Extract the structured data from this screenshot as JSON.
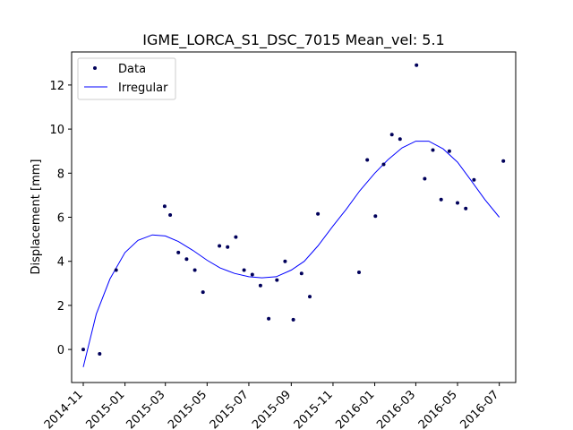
{
  "chart_data": {
    "type": "scatter",
    "title": "IGME_LORCA_S1_DSC_7015     Mean_vel: 5.1",
    "xlabel": "",
    "ylabel": "Displacement [mm]",
    "ylim": [
      -1.5,
      13.5
    ],
    "xlim": [
      "2014-10-15",
      "2016-07-25"
    ],
    "yticks": [
      0,
      2,
      4,
      6,
      8,
      10,
      12
    ],
    "xticks": [
      "2014-11",
      "2015-01",
      "2015-03",
      "2015-05",
      "2015-07",
      "2015-09",
      "2015-11",
      "2016-01",
      "2016-03",
      "2016-05",
      "2016-07"
    ],
    "grid": false,
    "legend": {
      "location": "upper-left",
      "entries": [
        "Data",
        "Irregular"
      ]
    },
    "colors": {
      "data": "#00005a",
      "fit": "#0000ff"
    },
    "series": [
      {
        "name": "Data",
        "kind": "points",
        "x": [
          "2014-11-01",
          "2014-11-25",
          "2014-12-19",
          "2015-02-28",
          "2015-03-08",
          "2015-03-20",
          "2015-04-01",
          "2015-04-13",
          "2015-04-25",
          "2015-05-19",
          "2015-05-31",
          "2015-06-12",
          "2015-06-24",
          "2015-07-06",
          "2015-07-18",
          "2015-07-30",
          "2015-08-11",
          "2015-08-23",
          "2015-09-04",
          "2015-09-16",
          "2015-09-28",
          "2015-10-10",
          "2015-12-09",
          "2015-12-21",
          "2016-01-02",
          "2016-01-14",
          "2016-01-26",
          "2016-02-07",
          "2016-03-02",
          "2016-03-14",
          "2016-03-26",
          "2016-04-07",
          "2016-04-19",
          "2016-05-01",
          "2016-05-13",
          "2016-05-25",
          "2016-07-07"
        ],
        "y": [
          0.0,
          -0.2,
          3.6,
          6.5,
          6.1,
          4.4,
          4.1,
          3.6,
          2.6,
          4.7,
          4.65,
          5.1,
          3.6,
          3.4,
          2.9,
          1.4,
          3.15,
          4.0,
          1.35,
          3.45,
          2.4,
          6.15,
          3.5,
          8.6,
          6.05,
          8.4,
          9.75,
          9.55,
          12.9,
          7.75,
          9.05,
          6.8,
          9.0,
          6.65,
          6.4,
          7.7,
          8.55
        ]
      },
      {
        "name": "Irregular",
        "kind": "line",
        "x": [
          "2014-11-01",
          "2014-11-20",
          "2014-12-10",
          "2015-01-01",
          "2015-01-20",
          "2015-02-10",
          "2015-03-01",
          "2015-03-20",
          "2015-04-10",
          "2015-05-01",
          "2015-05-20",
          "2015-06-10",
          "2015-07-01",
          "2015-07-20",
          "2015-08-10",
          "2015-09-01",
          "2015-09-20",
          "2015-10-10",
          "2015-11-01",
          "2015-11-20",
          "2015-12-10",
          "2016-01-01",
          "2016-01-20",
          "2016-02-10",
          "2016-03-01",
          "2016-03-20",
          "2016-04-10",
          "2016-05-01",
          "2016-05-20",
          "2016-06-10",
          "2016-07-01"
        ],
        "y": [
          -0.8,
          1.6,
          3.2,
          4.4,
          4.95,
          5.2,
          5.15,
          4.9,
          4.5,
          4.05,
          3.7,
          3.45,
          3.3,
          3.25,
          3.3,
          3.6,
          4.0,
          4.7,
          5.6,
          6.35,
          7.2,
          8.0,
          8.6,
          9.15,
          9.45,
          9.45,
          9.1,
          8.5,
          7.7,
          6.8,
          6.0
        ]
      }
    ]
  }
}
